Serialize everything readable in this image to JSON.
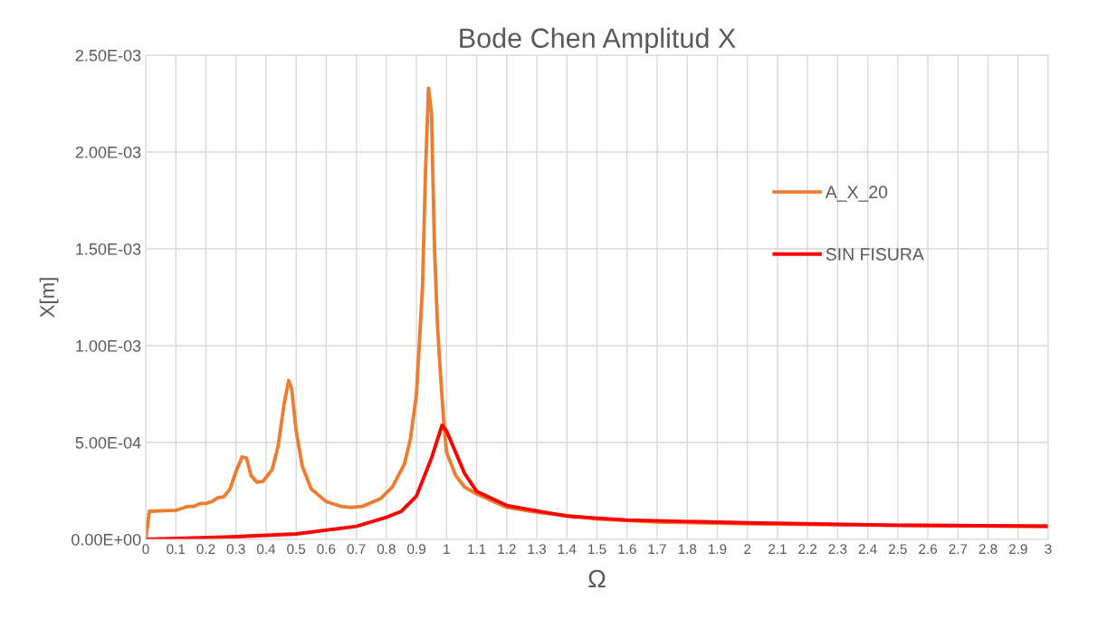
{
  "chart_data": {
    "type": "line",
    "title": "Bode Chen Amplitud X",
    "xlabel": "Ω",
    "ylabel": "X[m]",
    "xlim": [
      0,
      3
    ],
    "xticks": [
      0,
      0.1,
      0.2,
      0.3,
      0.4,
      0.5,
      0.6,
      0.7,
      0.8,
      0.9,
      1,
      1.1,
      1.2,
      1.3,
      1.4,
      1.5,
      1.6,
      1.7,
      1.8,
      1.9,
      2,
      2.1,
      2.2,
      2.3,
      2.4,
      2.5,
      2.6,
      2.7,
      2.8,
      2.9,
      3
    ],
    "ylim": [
      0,
      0.0025
    ],
    "yticks": [
      {
        "value": 0,
        "label": "0.00E+00"
      },
      {
        "value": 0.0005,
        "label": "5.00E-04"
      },
      {
        "value": 0.001,
        "label": "1.00E-03"
      },
      {
        "value": 0.0015,
        "label": "1.50E-03"
      },
      {
        "value": 0.002,
        "label": "2.00E-03"
      },
      {
        "value": 0.0025,
        "label": "2.50E-03"
      }
    ],
    "grid": true,
    "legend": "right",
    "marker": "none",
    "line_style": "solid",
    "series": [
      {
        "name": "A_X_20",
        "color": "#ed7d31",
        "x": [
          0,
          0.012,
          0.1,
          0.12,
          0.14,
          0.16,
          0.18,
          0.2,
          0.22,
          0.24,
          0.26,
          0.28,
          0.3,
          0.32,
          0.335,
          0.35,
          0.37,
          0.39,
          0.42,
          0.44,
          0.46,
          0.475,
          0.485,
          0.5,
          0.52,
          0.55,
          0.6,
          0.65,
          0.68,
          0.72,
          0.78,
          0.82,
          0.86,
          0.88,
          0.9,
          0.92,
          0.93,
          0.94,
          0.95,
          0.96,
          0.97,
          0.98,
          0.99,
          1.0,
          1.03,
          1.06,
          1.1,
          1.2,
          1.3,
          1.5,
          1.7,
          2.0,
          2.5,
          3.0
        ],
        "values": [
          0,
          0.000145,
          0.00015,
          0.00016,
          0.00017,
          0.00017,
          0.000185,
          0.000185,
          0.000195,
          0.000215,
          0.00022,
          0.00026,
          0.00035,
          0.000425,
          0.00042,
          0.00033,
          0.000295,
          0.0003,
          0.00036,
          0.00048,
          0.0007,
          0.00082,
          0.00078,
          0.00056,
          0.00038,
          0.00026,
          0.000195,
          0.00017,
          0.000165,
          0.00017,
          0.00021,
          0.00027,
          0.00039,
          0.00052,
          0.00075,
          0.0013,
          0.0019,
          0.00233,
          0.0022,
          0.0015,
          0.0011,
          0.00085,
          0.00062,
          0.00045,
          0.00033,
          0.00027,
          0.000235,
          0.000165,
          0.00014,
          0.000105,
          9e-05,
          8e-05,
          7.2e-05,
          6.8e-05
        ]
      },
      {
        "name": "SIN FISURA",
        "color": "#ff0000",
        "x": [
          0,
          0.3,
          0.5,
          0.7,
          0.8,
          0.85,
          0.9,
          0.95,
          0.985,
          1.0,
          1.06,
          1.1,
          1.2,
          1.4,
          1.6,
          2.0,
          2.5,
          3.0
        ],
        "values": [
          0,
          1.4e-05,
          2.8e-05,
          6.7e-05,
          0.000114,
          0.000145,
          0.000224,
          0.00042,
          0.000589,
          0.00056,
          0.00034,
          0.000248,
          0.000175,
          0.00012,
          0.0001,
          8.5e-05,
          7.3e-05,
          6.8e-05
        ]
      }
    ]
  }
}
